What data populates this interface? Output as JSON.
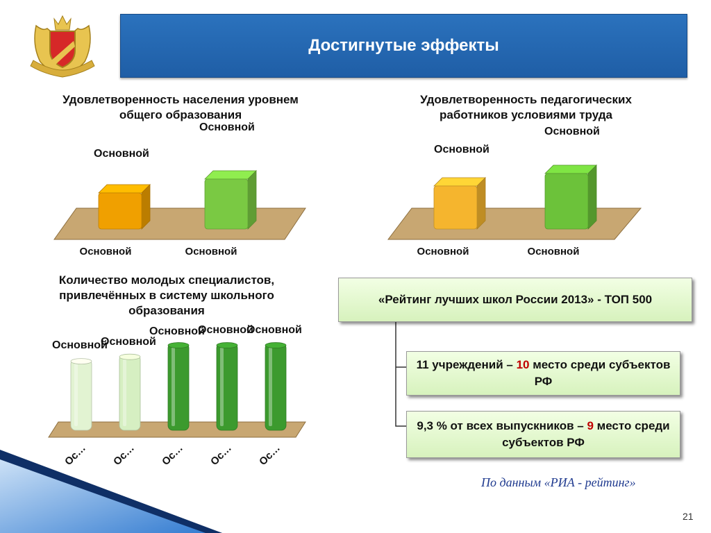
{
  "header": {
    "title": "Достигнутые эффекты"
  },
  "emblem": {
    "icon": "coat-of-arms-icon"
  },
  "chart_data": [
    {
      "type": "bar",
      "title": "Удовлетворенность населения уровнем общего образования",
      "categories": [
        "Основной",
        "Основной"
      ],
      "values": [
        52,
        72
      ],
      "data_labels": [
        "Основной",
        "Основной"
      ],
      "colors": [
        "#f0a000",
        "#7ac943"
      ]
    },
    {
      "type": "bar",
      "title": "Удовлетворенность педагогических работников условиями труда",
      "categories": [
        "Основной",
        "Основной"
      ],
      "values": [
        62,
        80
      ],
      "data_labels": [
        "Основной",
        "Основной"
      ],
      "colors": [
        "#f5b52e",
        "#6cc23a"
      ]
    },
    {
      "type": "bar",
      "title": "Количество молодых специалистов, привлечённых в систему школьного образования",
      "categories": [
        "Ос…",
        "Ос…",
        "Ос…",
        "Ос…",
        "Ос…"
      ],
      "values": [
        80,
        85,
        98,
        98,
        98
      ],
      "data_labels": [
        "Основной",
        "Основной",
        "Основной",
        "Основной",
        "Основной"
      ],
      "colors": [
        "#e2f3d2",
        "#d6efc2",
        "#3c9a2e",
        "#3c9a2e",
        "#3c9a2e"
      ]
    }
  ],
  "rating": {
    "title": "«Рейтинг лучших школ России 2013» - ТОП 500",
    "item1": {
      "before": "11 учреждений – ",
      "highlight": "10",
      "after": "  место среди субъектов РФ"
    },
    "item2": {
      "before": "9,3 % от всех выпускников – ",
      "highlight": "9",
      "after": "  место среди субъектов РФ"
    }
  },
  "source": "По данным «РИА - рейтинг»",
  "page_number": "21"
}
